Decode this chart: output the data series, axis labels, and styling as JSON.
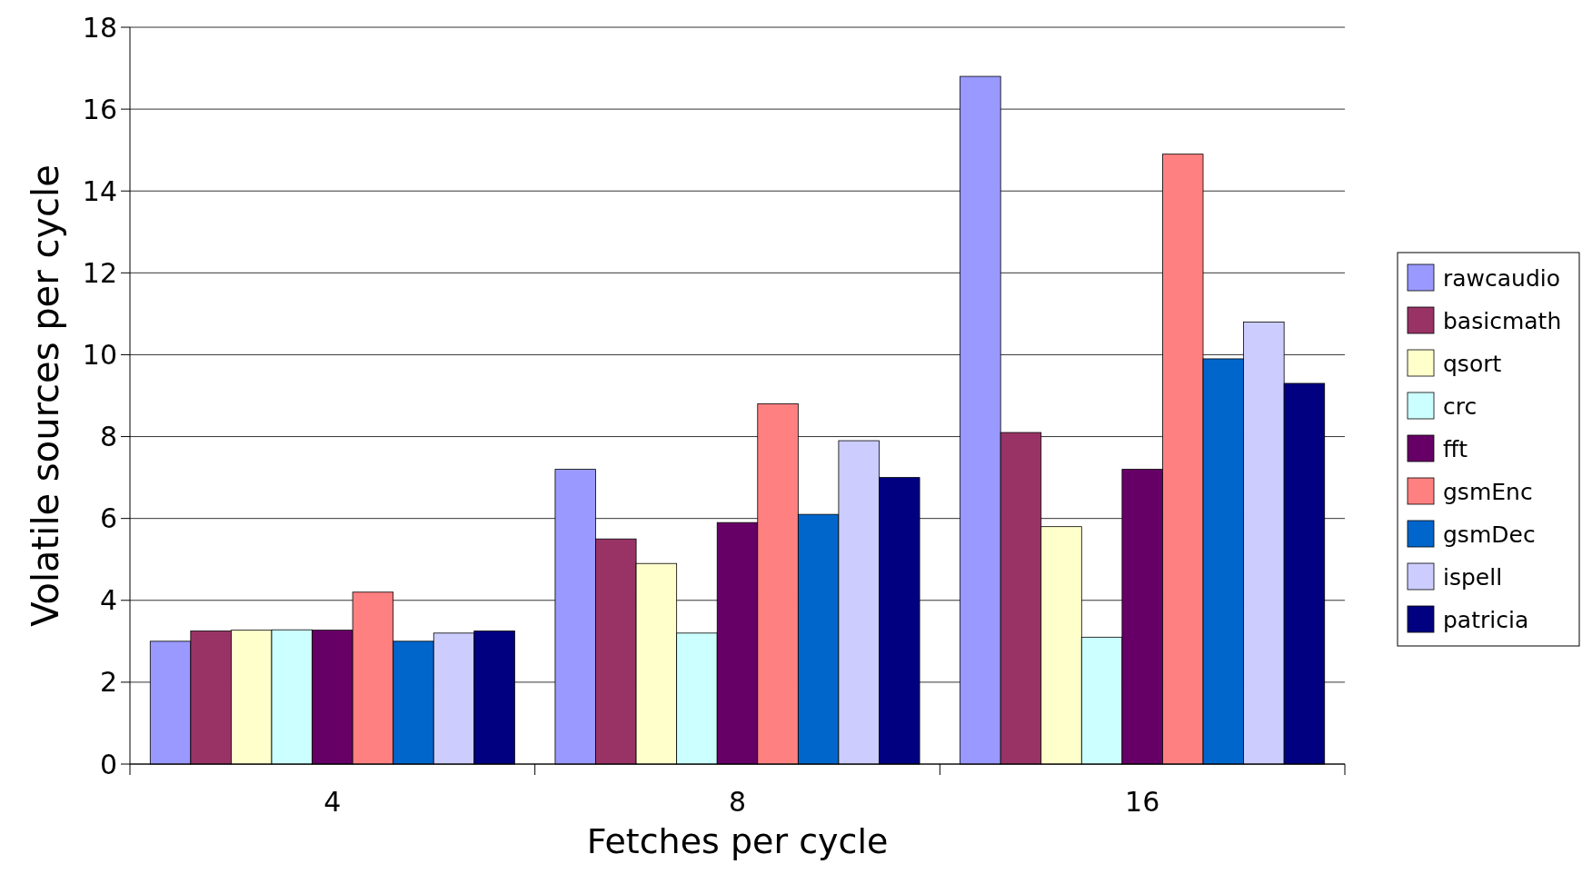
{
  "chart_data": {
    "type": "bar",
    "xlabel": "Fetches per cycle",
    "ylabel": "Volatile sources per cycle",
    "categories": [
      "4",
      "8",
      "16"
    ],
    "series": [
      {
        "name": "rawcaudio",
        "color": "#9999ff",
        "values": [
          3.0,
          7.2,
          16.8
        ]
      },
      {
        "name": "basicmath",
        "color": "#993366",
        "values": [
          3.25,
          5.5,
          8.1
        ]
      },
      {
        "name": "qsort",
        "color": "#ffffcc",
        "values": [
          3.27,
          4.9,
          5.8
        ]
      },
      {
        "name": "crc",
        "color": "#ccffff",
        "values": [
          3.28,
          3.2,
          3.1
        ]
      },
      {
        "name": "fft",
        "color": "#660066",
        "values": [
          3.27,
          5.9,
          7.2
        ]
      },
      {
        "name": "gsmEnc",
        "color": "#ff8080",
        "values": [
          4.2,
          8.8,
          14.9
        ]
      },
      {
        "name": "gsmDec",
        "color": "#0066cc",
        "values": [
          3.0,
          6.1,
          9.9
        ]
      },
      {
        "name": "ispell",
        "color": "#ccccff",
        "values": [
          3.2,
          7.9,
          10.8
        ]
      },
      {
        "name": "patricia",
        "color": "#000080",
        "values": [
          3.25,
          7.0,
          9.3
        ]
      }
    ],
    "ylim": [
      0,
      18
    ],
    "yticks": [
      0,
      2,
      4,
      6,
      8,
      10,
      12,
      14,
      16,
      18
    ],
    "grid": "y",
    "legend": "right"
  }
}
